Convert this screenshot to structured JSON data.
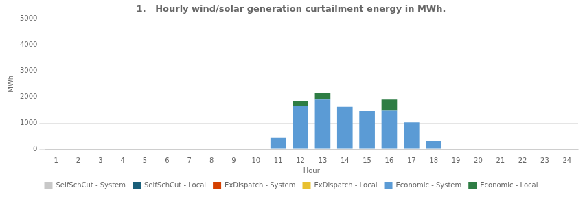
{
  "chart_data": {
    "type": "bar",
    "title": "1.   Hourly wind/solar generation curtailment energy in MWh.",
    "x_label": "Hour",
    "y_label": "MWh",
    "categories": [
      "1",
      "2",
      "3",
      "4",
      "5",
      "6",
      "7",
      "8",
      "9",
      "10",
      "11",
      "12",
      "13",
      "14",
      "15",
      "16",
      "17",
      "18",
      "19",
      "20",
      "21",
      "22",
      "23",
      "24"
    ],
    "series": [
      {
        "name": "SelfSchCut - System",
        "color": "#c8c8c8",
        "values": [
          0,
          0,
          0,
          0,
          0,
          0,
          0,
          0,
          0,
          0,
          0,
          0,
          0,
          0,
          0,
          0,
          0,
          0,
          0,
          0,
          0,
          0,
          0,
          0
        ]
      },
      {
        "name": "SelfSchCut - Local",
        "color": "#1a5f7a",
        "values": [
          0,
          0,
          0,
          0,
          0,
          0,
          0,
          0,
          0,
          0,
          0,
          0,
          0,
          0,
          0,
          0,
          0,
          0,
          0,
          0,
          0,
          0,
          0,
          0
        ]
      },
      {
        "name": "ExDispatch - System",
        "color": "#d44000",
        "values": [
          0,
          0,
          0,
          0,
          0,
          0,
          0,
          0,
          0,
          0,
          0,
          0,
          0,
          0,
          0,
          0,
          0,
          0,
          0,
          0,
          0,
          0,
          0,
          0
        ]
      },
      {
        "name": "ExDispatch - Local",
        "color": "#e8c030",
        "values": [
          0,
          0,
          0,
          0,
          0,
          0,
          0,
          0,
          0,
          0,
          0,
          0,
          0,
          0,
          0,
          0,
          0,
          0,
          0,
          0,
          0,
          0,
          0,
          0
        ]
      },
      {
        "name": "Economic - System",
        "color": "#5b9bd5",
        "values": [
          0,
          0,
          0,
          0,
          0,
          0,
          0,
          0,
          0,
          0,
          430,
          1650,
          1920,
          1620,
          1480,
          1490,
          1020,
          320,
          0,
          0,
          0,
          0,
          0,
          0
        ]
      },
      {
        "name": "Economic - Local",
        "color": "#2e7d44",
        "values": [
          0,
          0,
          0,
          0,
          0,
          0,
          0,
          0,
          0,
          0,
          0,
          200,
          230,
          0,
          0,
          430,
          0,
          0,
          0,
          0,
          0,
          0,
          0,
          0
        ]
      }
    ],
    "stacked": true,
    "ylim": [
      0,
      5000
    ],
    "yticks": [
      0,
      1000,
      2000,
      3000,
      4000,
      5000
    ],
    "grid": true,
    "legend": "bottom"
  }
}
